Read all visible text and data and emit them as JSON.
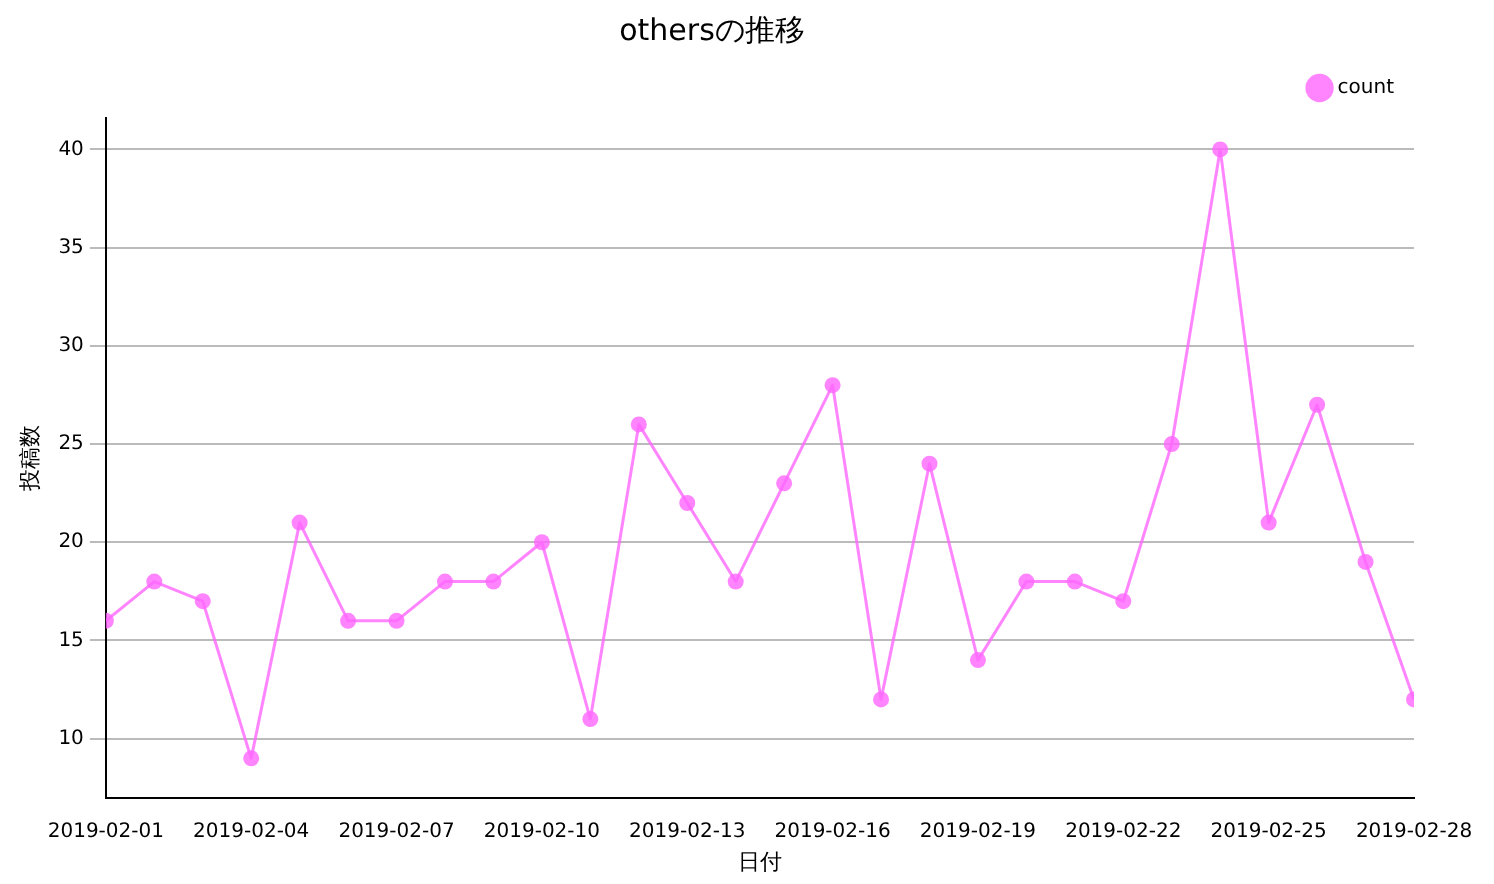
{
  "chart_data": {
    "type": "line",
    "title": "othersの推移",
    "xlabel": "日付",
    "ylabel": "投稿数",
    "x": [
      "2019-02-01",
      "2019-02-02",
      "2019-02-03",
      "2019-02-04",
      "2019-02-05",
      "2019-02-06",
      "2019-02-07",
      "2019-02-08",
      "2019-02-09",
      "2019-02-10",
      "2019-02-11",
      "2019-02-12",
      "2019-02-13",
      "2019-02-14",
      "2019-02-15",
      "2019-02-16",
      "2019-02-17",
      "2019-02-18",
      "2019-02-19",
      "2019-02-20",
      "2019-02-21",
      "2019-02-22",
      "2019-02-23",
      "2019-02-24",
      "2019-02-25",
      "2019-02-26",
      "2019-02-27",
      "2019-02-28"
    ],
    "series": [
      {
        "name": "count",
        "color": "#ff66ff",
        "values": [
          16,
          18,
          17,
          9,
          21,
          16,
          16,
          18,
          18,
          20,
          11,
          26,
          22,
          18,
          23,
          28,
          12,
          24,
          14,
          18,
          18,
          17,
          25,
          40,
          21,
          27,
          19,
          12
        ]
      }
    ],
    "xlim": [
      "2019-02-01",
      "2019-02-28"
    ],
    "xticks": [
      "2019-02-01",
      "2019-02-04",
      "2019-02-07",
      "2019-02-10",
      "2019-02-13",
      "2019-02-16",
      "2019-02-19",
      "2019-02-22",
      "2019-02-25",
      "2019-02-28"
    ],
    "ylim": [
      7,
      41.6
    ],
    "yticks": [
      10,
      15,
      20,
      25,
      30,
      35,
      40
    ],
    "grid": "y",
    "legend": "top right",
    "marker": "circle",
    "line_style": "solid"
  }
}
